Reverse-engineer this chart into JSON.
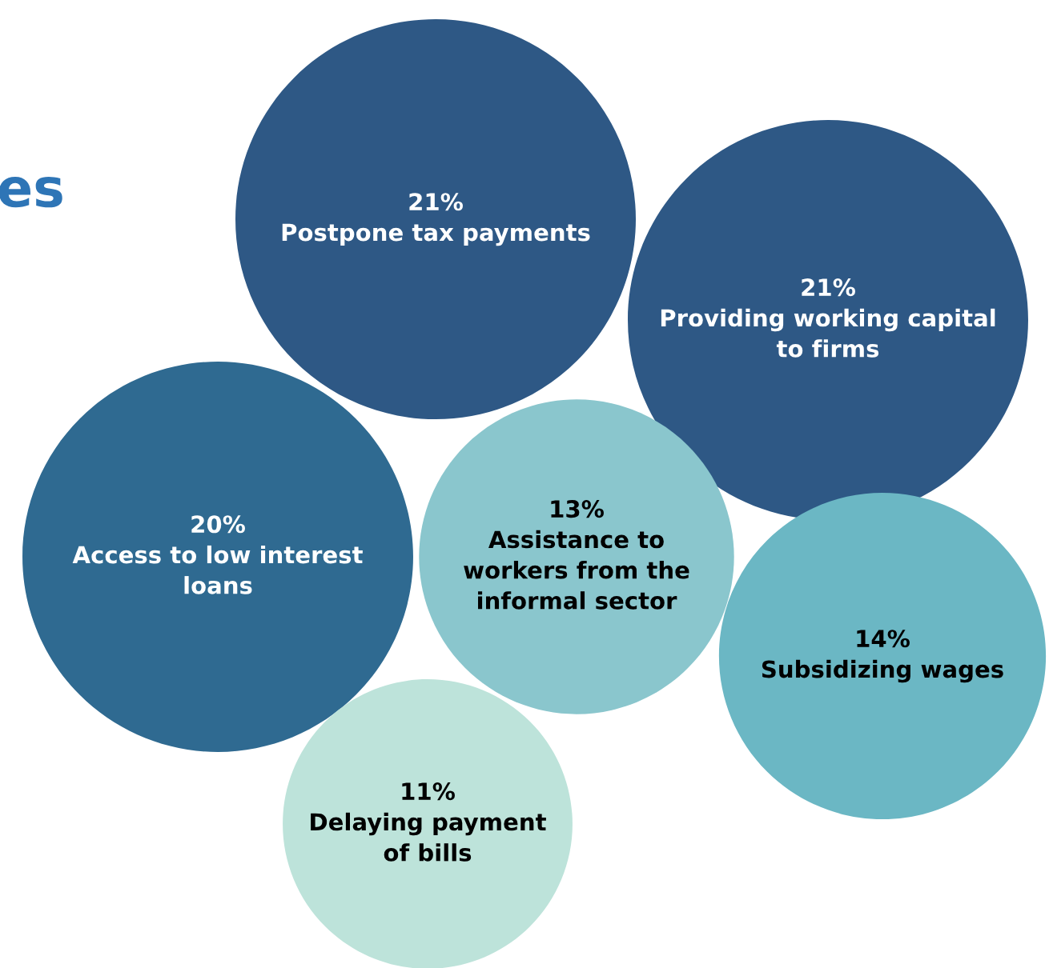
{
  "chart_data": {
    "type": "other",
    "title": "es",
    "categories": [
      "Postpone tax payments",
      "Providing working capital\nto firms",
      "Access to low interest\nloans",
      "Assistance to\nworkers from the\ninformal sector",
      "Subsidizing wages",
      "Delaying payment\nof bills"
    ],
    "values": [
      21,
      21,
      20,
      13,
      14,
      11
    ],
    "value_labels": [
      "21%",
      "21%",
      "20%",
      "13%",
      "14%",
      "11%"
    ],
    "colors": [
      "#2e5885",
      "#2e5885",
      "#2f6a91",
      "#8ac6cd",
      "#6bb7c4",
      "#bde3da"
    ]
  }
}
